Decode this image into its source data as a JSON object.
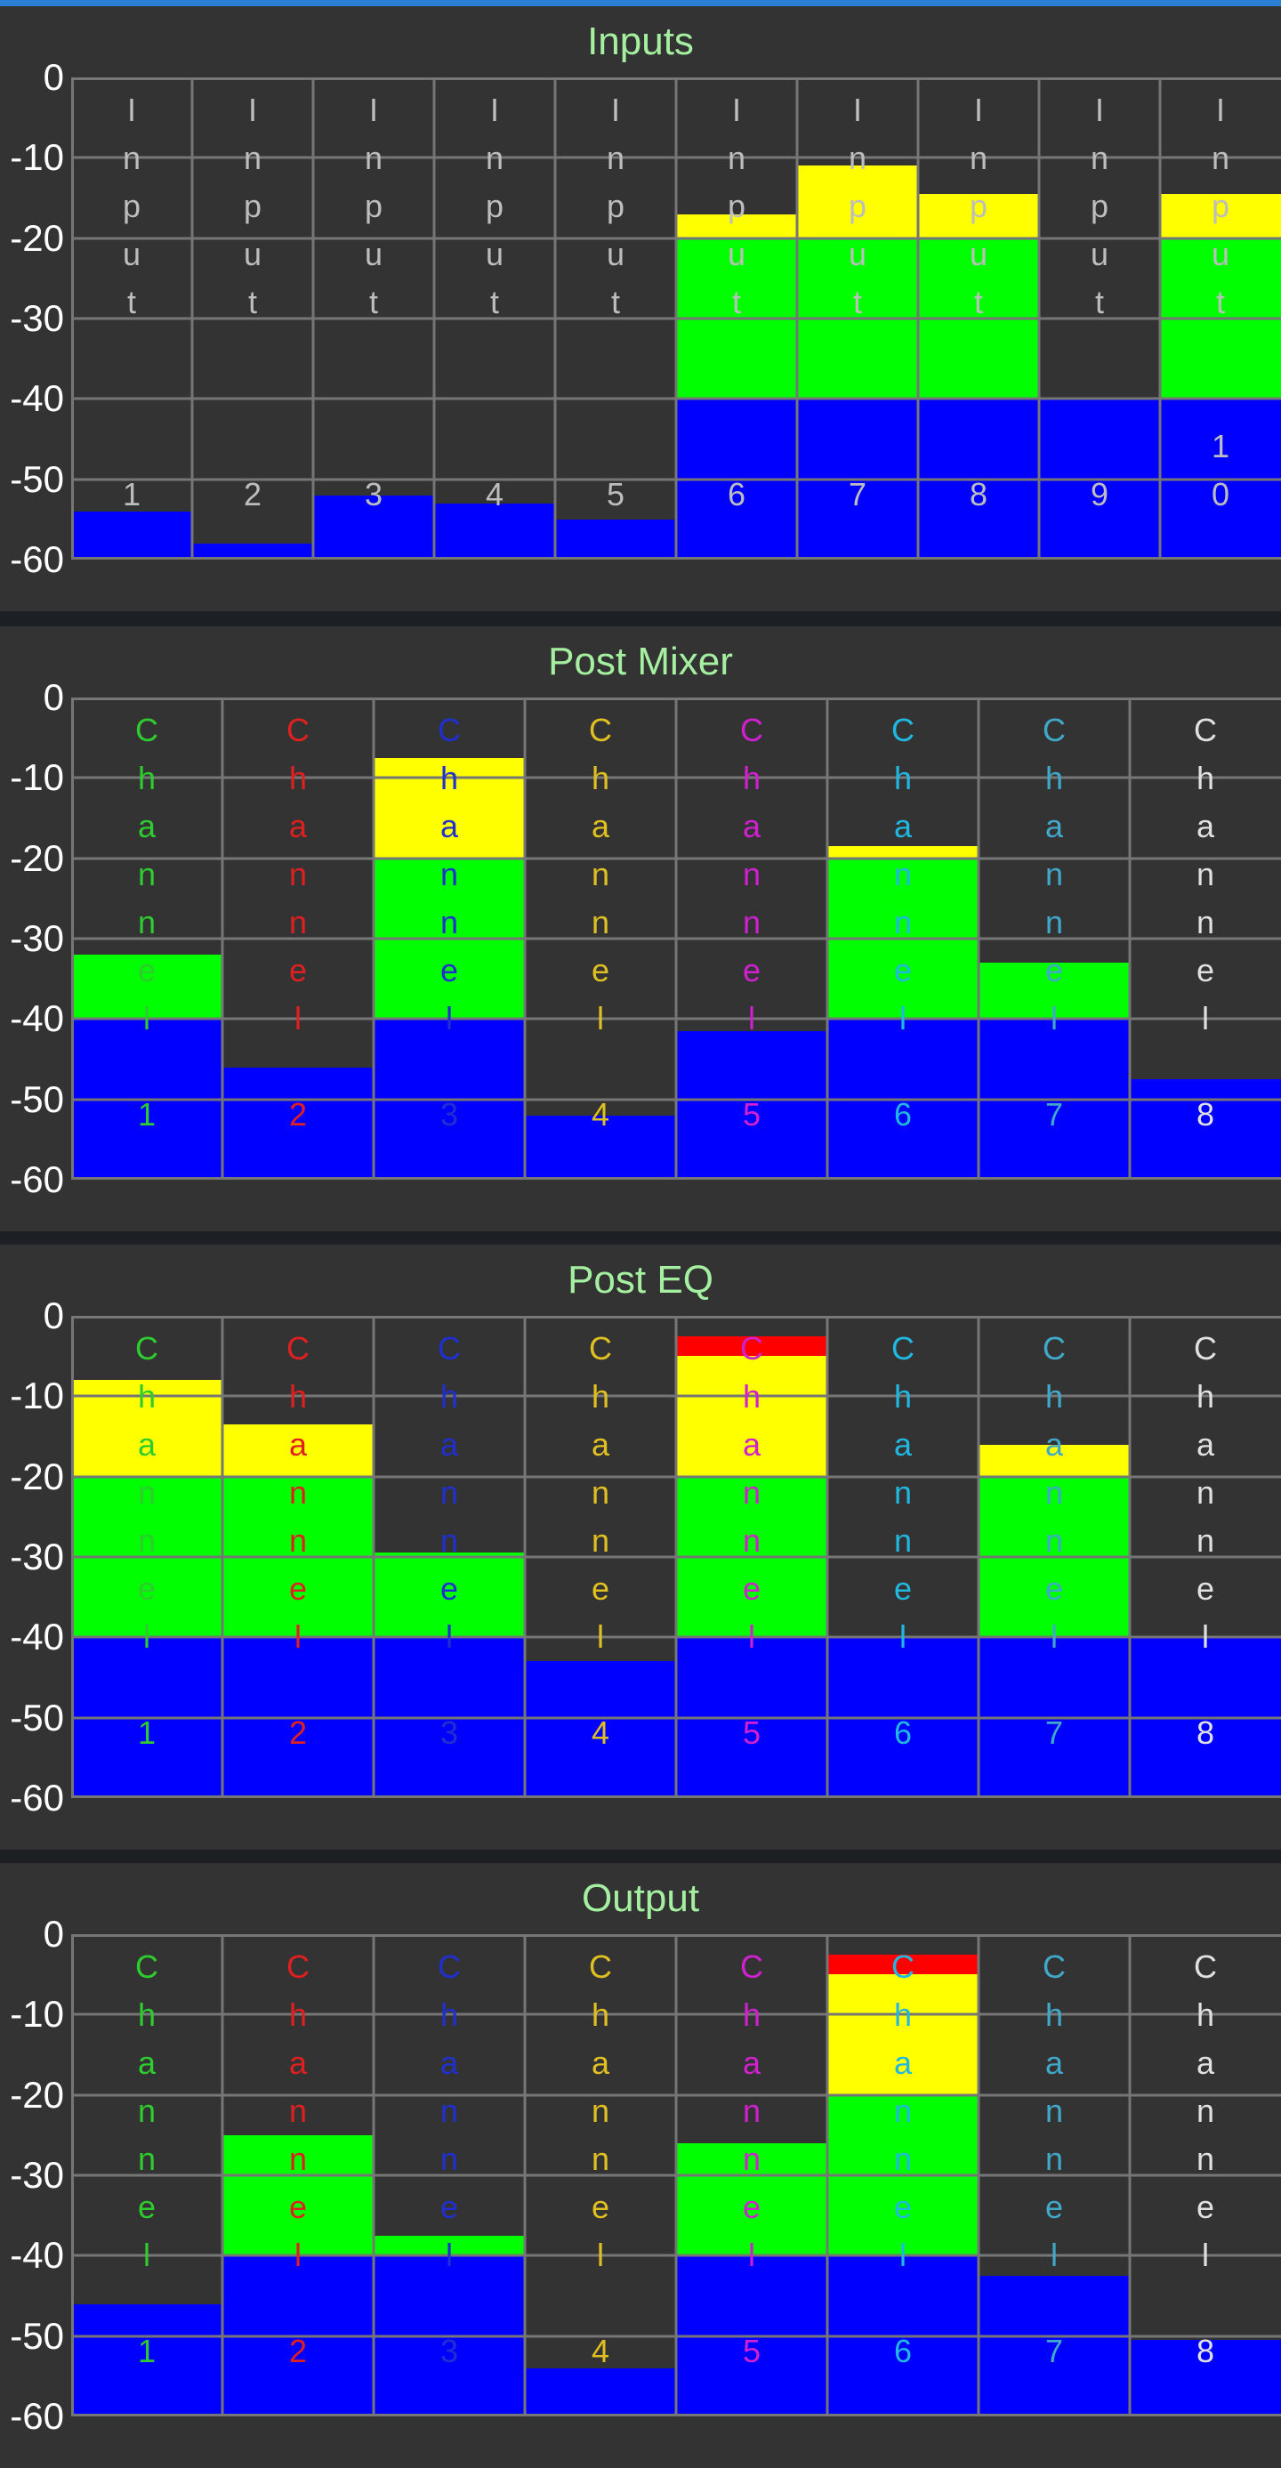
{
  "colors": {
    "background": "#1c1f23",
    "panel": "#333333",
    "accent_bar": "#2a7fd6",
    "title": "#a4f0a0",
    "grid": "#767676",
    "level_low": "#0000ff",
    "level_mid": "#00ff00",
    "level_high": "#ffff00",
    "level_clip": "#ff0000"
  },
  "scale": {
    "min_db": -60,
    "max_db": 0,
    "ticks": [
      "0",
      "-10",
      "-20",
      "-30",
      "-40",
      "-50",
      "-60"
    ]
  },
  "sections": [
    {
      "title": "Inputs",
      "channels": [
        {
          "label": "Input 1",
          "color": "#bdbdbd",
          "level_db": -54
        },
        {
          "label": "Input 2",
          "color": "#bdbdbd",
          "level_db": -58
        },
        {
          "label": "Input 3",
          "color": "#bdbdbd",
          "level_db": -52
        },
        {
          "label": "Input 4",
          "color": "#bdbdbd",
          "level_db": -53
        },
        {
          "label": "Input 5",
          "color": "#bdbdbd",
          "level_db": -55
        },
        {
          "label": "Input 6",
          "color": "#bdbdbd",
          "level_db": -17
        },
        {
          "label": "Input 7",
          "color": "#bdbdbd",
          "level_db": -11
        },
        {
          "label": "Input 8",
          "color": "#bdbdbd",
          "level_db": -14.5
        },
        {
          "label": "Input 9",
          "color": "#bdbdbd",
          "level_db": -40
        },
        {
          "label": "Input 10",
          "color": "#bdbdbd",
          "level_db": -14.5
        }
      ]
    },
    {
      "title": "Post Mixer",
      "channels": [
        {
          "label": "Channel 1",
          "color": "#2ecc2e",
          "level_db": -32
        },
        {
          "label": "Channel 2",
          "color": "#e02020",
          "level_db": -46
        },
        {
          "label": "Channel 3",
          "color": "#2030d0",
          "level_db": -7.5
        },
        {
          "label": "Channel 4",
          "color": "#e0c020",
          "level_db": -52
        },
        {
          "label": "Channel 5",
          "color": "#d020d0",
          "level_db": -41.5
        },
        {
          "label": "Channel 6",
          "color": "#20b8e0",
          "level_db": -18.5
        },
        {
          "label": "Channel 7",
          "color": "#40a8c8",
          "level_db": -33
        },
        {
          "label": "Channel 8",
          "color": "#e0e0e0",
          "level_db": -47.5
        }
      ]
    },
    {
      "title": "Post EQ",
      "channels": [
        {
          "label": "Channel 1",
          "color": "#2ecc2e",
          "level_db": -8
        },
        {
          "label": "Channel 2",
          "color": "#e02020",
          "level_db": -13.5
        },
        {
          "label": "Channel 3",
          "color": "#2030d0",
          "level_db": -29.5
        },
        {
          "label": "Channel 4",
          "color": "#e0c020",
          "level_db": -43
        },
        {
          "label": "Channel 5",
          "color": "#d020d0",
          "level_db": -2.5
        },
        {
          "label": "Channel 6",
          "color": "#20b8e0",
          "level_db": -40
        },
        {
          "label": "Channel 7",
          "color": "#40a8c8",
          "level_db": -16
        },
        {
          "label": "Channel 8",
          "color": "#e0e0e0",
          "level_db": -40
        }
      ]
    },
    {
      "title": "Output",
      "channels": [
        {
          "label": "Channel 1",
          "color": "#2ecc2e",
          "level_db": -46
        },
        {
          "label": "Channel 2",
          "color": "#e02020",
          "level_db": -25
        },
        {
          "label": "Channel 3",
          "color": "#2030d0",
          "level_db": -37.5
        },
        {
          "label": "Channel 4",
          "color": "#e0c020",
          "level_db": -54
        },
        {
          "label": "Channel 5",
          "color": "#d020d0",
          "level_db": -26
        },
        {
          "label": "Channel 6",
          "color": "#20b8e0",
          "level_db": -2.5
        },
        {
          "label": "Channel 7",
          "color": "#40a8c8",
          "level_db": -42.5
        },
        {
          "label": "Channel 8",
          "color": "#e0e0e0",
          "level_db": -50.5
        }
      ]
    }
  ]
}
